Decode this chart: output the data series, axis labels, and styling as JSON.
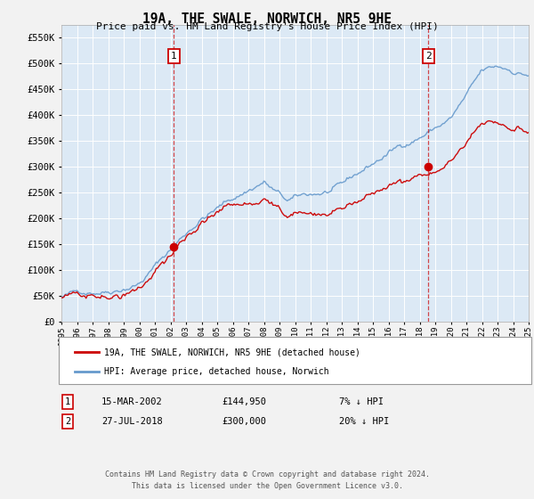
{
  "title": "19A, THE SWALE, NORWICH, NR5 9HE",
  "subtitle": "Price paid vs. HM Land Registry's House Price Index (HPI)",
  "legend_label_red": "19A, THE SWALE, NORWICH, NR5 9HE (detached house)",
  "legend_label_blue": "HPI: Average price, detached house, Norwich",
  "annotation1_date": "15-MAR-2002",
  "annotation1_price": "£144,950",
  "annotation1_pct": "7% ↓ HPI",
  "annotation2_date": "27-JUL-2018",
  "annotation2_price": "£300,000",
  "annotation2_pct": "20% ↓ HPI",
  "footer1": "Contains HM Land Registry data © Crown copyright and database right 2024.",
  "footer2": "This data is licensed under the Open Government Licence v3.0.",
  "ylim": [
    0,
    575000
  ],
  "yticks": [
    0,
    50000,
    100000,
    150000,
    200000,
    250000,
    300000,
    350000,
    400000,
    450000,
    500000,
    550000
  ],
  "background_color": "#dce9f5",
  "grid_color": "#ffffff",
  "red_color": "#cc0000",
  "blue_color": "#6699cc",
  "sale1_x": 2002.21,
  "sale1_y": 144950,
  "sale2_x": 2018.56,
  "sale2_y": 300000,
  "xmin": 1995,
  "xmax": 2025
}
